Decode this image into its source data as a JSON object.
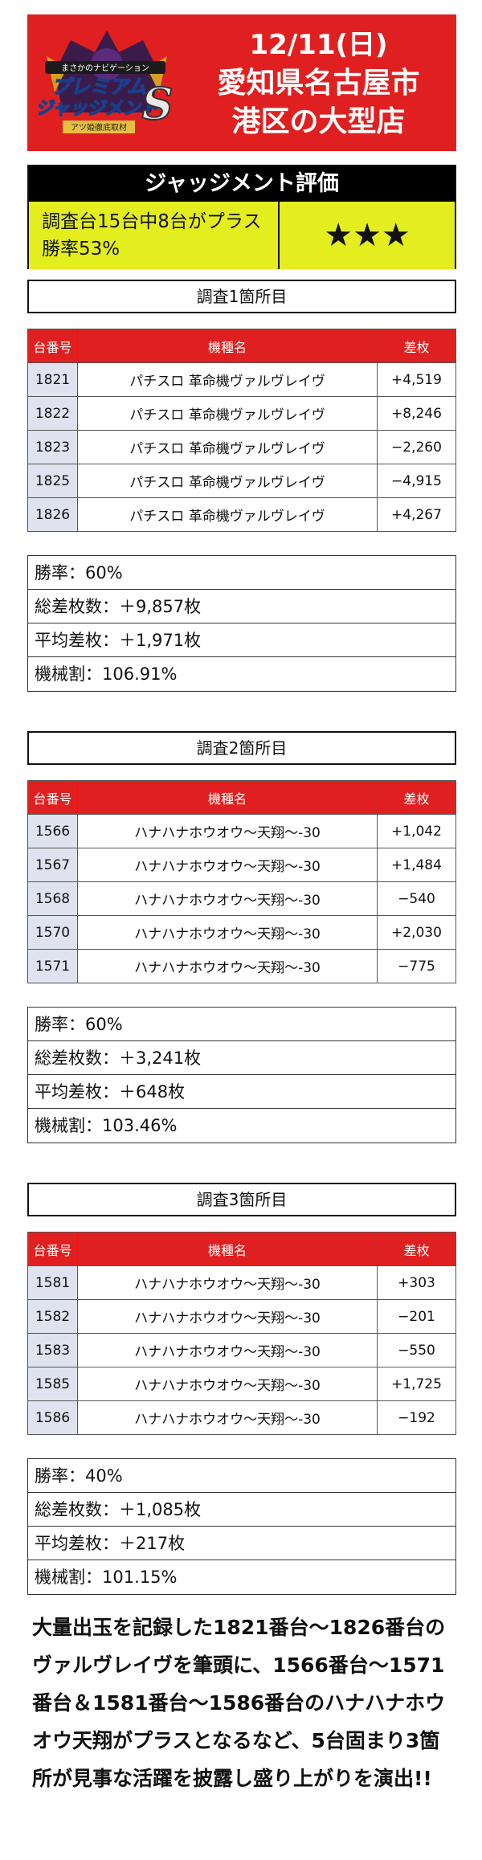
{
  "header": {
    "date": "12/11(日)",
    "location_line1": "愛知県名古屋市",
    "location_line2": "港区の大型店",
    "logo_line1": "プレミアム",
    "logo_line2": "ジャッジメント",
    "logo_badge": "S",
    "logo_sub": "アツ姫徹底取材",
    "logo_top": "まさかのナビゲーション"
  },
  "evaluation": {
    "title": "ジャッジメント評価",
    "summary_line1": "調査台15台中8台がプラス",
    "summary_line2": "勝率53%",
    "rating": "★★★"
  },
  "sections": [
    {
      "title": "調査1箇所目",
      "columns": [
        "台番号",
        "機種名",
        "差枚"
      ],
      "rows": [
        [
          "1821",
          "パチスロ 革命機ヴァルヴレイヴ",
          "+4,519"
        ],
        [
          "1822",
          "パチスロ 革命機ヴァルヴレイヴ",
          "+8,246"
        ],
        [
          "1823",
          "パチスロ 革命機ヴァルヴレイヴ",
          "−2,260"
        ],
        [
          "1825",
          "パチスロ 革命機ヴァルヴレイヴ",
          "−4,915"
        ],
        [
          "1826",
          "パチスロ 革命機ヴァルヴレイヴ",
          "+4,267"
        ]
      ],
      "stats": [
        "勝率：60%",
        "総差枚数：＋9,857枚",
        "平均差枚：＋1,971枚",
        "機械割：106.91%"
      ]
    },
    {
      "title": "調査2箇所目",
      "columns": [
        "台番号",
        "機種名",
        "差枚"
      ],
      "rows": [
        [
          "1566",
          "ハナハナホウオウ〜天翔〜-30",
          "+1,042"
        ],
        [
          "1567",
          "ハナハナホウオウ〜天翔〜-30",
          "+1,484"
        ],
        [
          "1568",
          "ハナハナホウオウ〜天翔〜-30",
          "−540"
        ],
        [
          "1570",
          "ハナハナホウオウ〜天翔〜-30",
          "+2,030"
        ],
        [
          "1571",
          "ハナハナホウオウ〜天翔〜-30",
          "−775"
        ]
      ],
      "stats": [
        "勝率：60%",
        "総差枚数：＋3,241枚",
        "平均差枚：＋648枚",
        "機械割：103.46%"
      ]
    },
    {
      "title": "調査3箇所目",
      "columns": [
        "台番号",
        "機種名",
        "差枚"
      ],
      "rows": [
        [
          "1581",
          "ハナハナホウオウ〜天翔〜-30",
          "+303"
        ],
        [
          "1582",
          "ハナハナホウオウ〜天翔〜-30",
          "−201"
        ],
        [
          "1583",
          "ハナハナホウオウ〜天翔〜-30",
          "−550"
        ],
        [
          "1585",
          "ハナハナホウオウ〜天翔〜-30",
          "+1,725"
        ],
        [
          "1586",
          "ハナハナホウオウ〜天翔〜-30",
          "−192"
        ]
      ],
      "stats": [
        "勝率：40%",
        "総差枚数：＋1,085枚",
        "平均差枚：＋217枚",
        "機械割：101.15%"
      ]
    }
  ],
  "description": "大量出玉を記録した1821番台〜1826番台のヴァルヴレイヴを筆頭に、1566番台〜1571番台＆1581番台〜1586番台のハナハナホウオウ天翔がプラスとなるなど、5台固まり3箇所が見事な活躍を披露し盛り上がりを演出!!"
}
